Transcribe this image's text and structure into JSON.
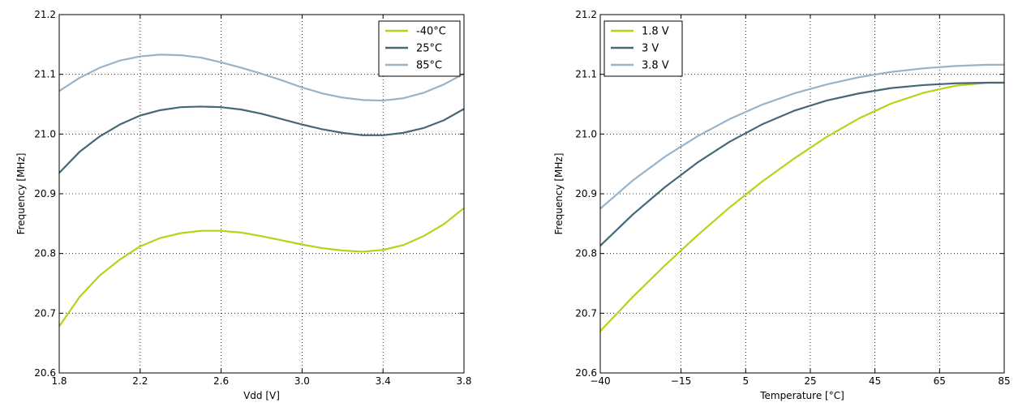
{
  "chart_data": [
    {
      "type": "line",
      "title": "",
      "xlabel": "Vdd [V]",
      "ylabel": "Frequency [MHz]",
      "xlim": [
        1.8,
        3.8
      ],
      "ylim": [
        20.6,
        21.2
      ],
      "xticks": [
        1.8,
        2.2,
        2.6,
        3.0,
        3.4,
        3.8
      ],
      "xtick_labels": [
        "1.8",
        "2.2",
        "2.6",
        "3.0",
        "3.4",
        "3.8"
      ],
      "yticks": [
        20.6,
        20.7,
        20.8,
        20.9,
        21.0,
        21.1,
        21.2
      ],
      "ytick_labels": [
        "20.6",
        "20.7",
        "20.8",
        "20.9",
        "21.0",
        "21.1",
        "21.2"
      ],
      "grid": true,
      "legend_position": "top-right",
      "x": [
        1.8,
        1.9,
        2.0,
        2.1,
        2.2,
        2.3,
        2.4,
        2.5,
        2.6,
        2.7,
        2.8,
        2.9,
        3.0,
        3.1,
        3.2,
        3.3,
        3.4,
        3.5,
        3.6,
        3.7,
        3.8
      ],
      "series": [
        {
          "name": "-40°C",
          "color": "#b8d21a",
          "values": [
            20.678,
            20.727,
            20.763,
            20.79,
            20.812,
            20.826,
            20.834,
            20.838,
            20.838,
            20.835,
            20.829,
            20.822,
            20.815,
            20.809,
            20.805,
            20.803,
            20.806,
            20.814,
            20.829,
            20.849,
            20.876
          ]
        },
        {
          "name": "25°C",
          "color": "#456878",
          "values": [
            20.935,
            20.97,
            20.996,
            21.016,
            21.031,
            21.04,
            21.045,
            21.046,
            21.045,
            21.041,
            21.034,
            21.025,
            21.016,
            21.008,
            21.002,
            20.998,
            20.998,
            21.002,
            21.01,
            21.023,
            21.042
          ]
        },
        {
          "name": "85°C",
          "color": "#97b3ca",
          "values": [
            21.072,
            21.094,
            21.111,
            21.123,
            21.13,
            21.133,
            21.132,
            21.128,
            21.12,
            21.111,
            21.101,
            21.09,
            21.078,
            21.068,
            21.061,
            21.057,
            21.056,
            21.06,
            21.069,
            21.083,
            21.101
          ]
        }
      ]
    },
    {
      "type": "line",
      "title": "",
      "xlabel": "Temperature [°C]",
      "ylabel": "Frequency [MHz]",
      "xlim": [
        -40,
        85
      ],
      "ylim": [
        20.6,
        21.2
      ],
      "xticks": [
        -40,
        -15,
        5,
        25,
        45,
        65,
        85
      ],
      "xtick_labels": [
        "−40",
        "−15",
        "5",
        "25",
        "45",
        "65",
        "85"
      ],
      "yticks": [
        20.6,
        20.7,
        20.8,
        20.9,
        21.0,
        21.1,
        21.2
      ],
      "ytick_labels": [
        "20.6",
        "20.7",
        "20.8",
        "20.9",
        "21.0",
        "21.1",
        "21.2"
      ],
      "grid": true,
      "legend_position": "top-left",
      "x": [
        -40,
        -30,
        -20,
        -10,
        0,
        10,
        20,
        30,
        40,
        50,
        60,
        70,
        80,
        85
      ],
      "series": [
        {
          "name": "1.8 V",
          "color": "#b8d21a",
          "values": [
            20.67,
            20.727,
            20.78,
            20.83,
            20.877,
            20.92,
            20.959,
            20.995,
            21.026,
            21.051,
            21.069,
            21.081,
            21.086,
            21.086
          ]
        },
        {
          "name": "3 V",
          "color": "#456878",
          "values": [
            20.813,
            20.865,
            20.911,
            20.952,
            20.987,
            21.016,
            21.039,
            21.056,
            21.068,
            21.077,
            21.082,
            21.085,
            21.086,
            21.086
          ]
        },
        {
          "name": "3.8 V",
          "color": "#97b3ca",
          "values": [
            20.875,
            20.922,
            20.962,
            20.996,
            21.025,
            21.049,
            21.068,
            21.083,
            21.095,
            21.104,
            21.11,
            21.114,
            21.116,
            21.116
          ]
        }
      ]
    }
  ]
}
